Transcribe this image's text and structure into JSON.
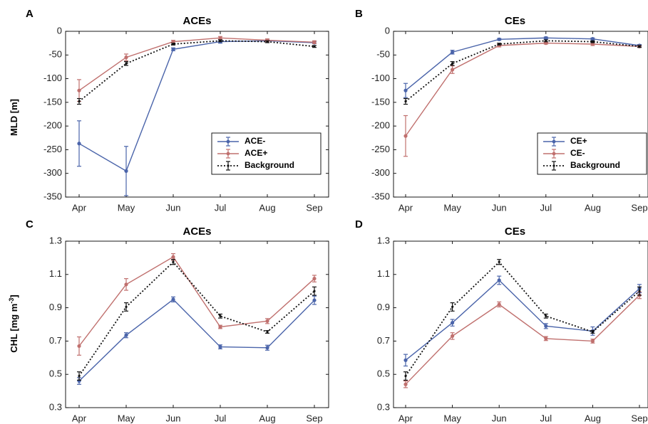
{
  "ylabels": {
    "mld": "MLD [m]",
    "chl_main": "CHL [mg m",
    "chl_sup": "-3",
    "chl_end": "]"
  },
  "chart_data": [
    {
      "panel": "A",
      "title": "ACEs",
      "type": "line",
      "categories": [
        "Apr",
        "May",
        "Jun",
        "Jul",
        "Aug",
        "Sep"
      ],
      "ylim": [
        -350,
        0
      ],
      "yticks": [
        0,
        -50,
        -100,
        -150,
        -200,
        -250,
        -300,
        -350
      ],
      "legend_position": "bottom-right",
      "series": [
        {
          "name": "ACE-",
          "color": "#4a64aa",
          "style": "solid",
          "values": [
            -237,
            -295,
            -38,
            -22,
            -20,
            -24
          ],
          "errors": [
            48,
            52,
            3,
            3,
            2,
            2
          ]
        },
        {
          "name": "ACE+",
          "color": "#c0706e",
          "style": "solid",
          "values": [
            -125,
            -55,
            -22,
            -14,
            -19,
            -23
          ],
          "errors": [
            23,
            7,
            3,
            3,
            3,
            3
          ]
        },
        {
          "name": "Background",
          "color": "#111111",
          "style": "dotted",
          "values": [
            -148,
            -68,
            -27,
            -20,
            -22,
            -32
          ],
          "errors": [
            6,
            4,
            2,
            2,
            2,
            2
          ]
        }
      ]
    },
    {
      "panel": "B",
      "title": "CEs",
      "type": "line",
      "categories": [
        "Apr",
        "May",
        "Jun",
        "Jul",
        "Aug",
        "Sep"
      ],
      "ylim": [
        -350,
        0
      ],
      "yticks": [
        0,
        -50,
        -100,
        -150,
        -200,
        -250,
        -300,
        -350
      ],
      "legend_position": "bottom-right",
      "series": [
        {
          "name": "CE+",
          "color": "#4a64aa",
          "style": "solid",
          "values": [
            -125,
            -44,
            -17,
            -14,
            -16,
            -30
          ],
          "errors": [
            15,
            4,
            2,
            2,
            2,
            2
          ]
        },
        {
          "name": "CE-",
          "color": "#c0706e",
          "style": "solid",
          "values": [
            -221,
            -81,
            -30,
            -25,
            -27,
            -32
          ],
          "errors": [
            43,
            8,
            3,
            2,
            3,
            2
          ]
        },
        {
          "name": "Background",
          "color": "#111111",
          "style": "dotted",
          "values": [
            -148,
            -68,
            -27,
            -20,
            -22,
            -32
          ],
          "errors": [
            6,
            4,
            2,
            2,
            2,
            2
          ]
        }
      ]
    },
    {
      "panel": "C",
      "title": "ACEs",
      "type": "line",
      "categories": [
        "Apr",
        "May",
        "Jun",
        "Jul",
        "Aug",
        "Sep"
      ],
      "ylim": [
        0.3,
        1.3
      ],
      "yticks": [
        0.3,
        0.5,
        0.7,
        0.9,
        1.1,
        1.3
      ],
      "series": [
        {
          "name": "ACE-",
          "color": "#4a64aa",
          "style": "solid",
          "values": [
            0.46,
            0.735,
            0.95,
            0.665,
            0.66,
            0.945
          ],
          "errors": [
            0.02,
            0.015,
            0.015,
            0.012,
            0.015,
            0.025
          ]
        },
        {
          "name": "ACE+",
          "color": "#c0706e",
          "style": "solid",
          "values": [
            0.67,
            1.04,
            1.205,
            0.785,
            0.82,
            1.075
          ],
          "errors": [
            0.055,
            0.035,
            0.02,
            0.01,
            0.015,
            0.02
          ]
        },
        {
          "name": "Background",
          "color": "#111111",
          "style": "dotted",
          "values": [
            0.49,
            0.905,
            1.175,
            0.85,
            0.755,
            1.0
          ],
          "errors": [
            0.025,
            0.025,
            0.015,
            0.012,
            0.008,
            0.025
          ]
        }
      ]
    },
    {
      "panel": "D",
      "title": "CEs",
      "type": "line",
      "categories": [
        "Apr",
        "May",
        "Jun",
        "Jul",
        "Aug",
        "Sep"
      ],
      "ylim": [
        0.3,
        1.3
      ],
      "yticks": [
        0.3,
        0.5,
        0.7,
        0.9,
        1.1,
        1.3
      ],
      "series": [
        {
          "name": "CE+",
          "color": "#4a64aa",
          "style": "solid",
          "values": [
            0.585,
            0.81,
            1.065,
            0.79,
            0.76,
            1.015
          ],
          "errors": [
            0.035,
            0.02,
            0.025,
            0.015,
            0.025,
            0.025
          ]
        },
        {
          "name": "CE-",
          "color": "#c0706e",
          "style": "solid",
          "values": [
            0.44,
            0.73,
            0.92,
            0.715,
            0.7,
            0.975
          ],
          "errors": [
            0.02,
            0.02,
            0.015,
            0.012,
            0.012,
            0.02
          ]
        },
        {
          "name": "Background",
          "color": "#111111",
          "style": "dotted",
          "values": [
            0.49,
            0.905,
            1.175,
            0.85,
            0.755,
            1.0
          ],
          "errors": [
            0.025,
            0.025,
            0.015,
            0.012,
            0.008,
            0.025
          ]
        }
      ]
    }
  ]
}
